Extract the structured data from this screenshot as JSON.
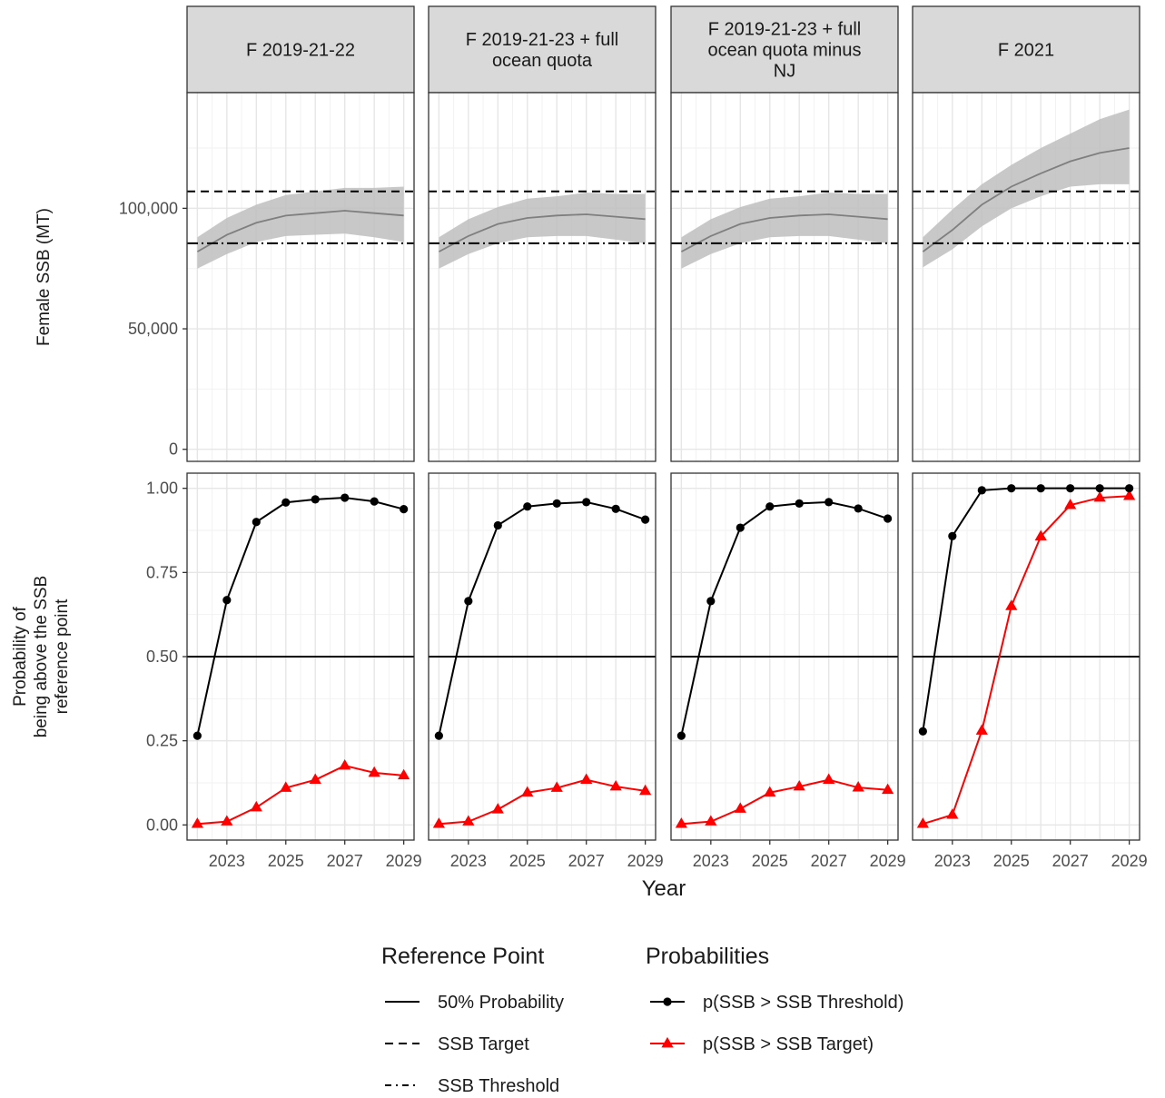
{
  "chart_data": {
    "type": "line",
    "facets": [
      {
        "label_lines": [
          "F 2019-21-22"
        ],
        "ssb": {
          "x": [
            2022,
            2023,
            2024,
            2025,
            2026,
            2027,
            2028,
            2029
          ],
          "median": [
            82000,
            89000,
            94000,
            97000,
            98000,
            99000,
            98000,
            97000
          ],
          "lower": [
            75000,
            81000,
            86000,
            88500,
            89000,
            89500,
            88000,
            86000
          ],
          "upper": [
            88000,
            96000,
            101500,
            105500,
            107000,
            108500,
            108500,
            109000
          ]
        },
        "p_threshold": [
          0.265,
          0.668,
          0.9,
          0.958,
          0.967,
          0.972,
          0.961,
          0.938
        ],
        "p_target": [
          0.003,
          0.01,
          0.052,
          0.11,
          0.134,
          0.176,
          0.155,
          0.147
        ]
      },
      {
        "label_lines": [
          "F 2019-21-23 + full",
          "ocean quota"
        ],
        "ssb": {
          "x": [
            2022,
            2023,
            2024,
            2025,
            2026,
            2027,
            2028,
            2029
          ],
          "median": [
            82000,
            88500,
            93500,
            96000,
            97000,
            97500,
            96500,
            95500
          ],
          "lower": [
            75000,
            81000,
            85500,
            88000,
            88500,
            88500,
            87000,
            85500
          ],
          "upper": [
            88000,
            95500,
            100500,
            104000,
            105000,
            106500,
            106000,
            106000
          ]
        },
        "p_threshold": [
          0.265,
          0.665,
          0.89,
          0.946,
          0.955,
          0.959,
          0.939,
          0.907
        ],
        "p_target": [
          0.003,
          0.01,
          0.046,
          0.096,
          0.11,
          0.134,
          0.114,
          0.101
        ]
      },
      {
        "label_lines": [
          "F 2019-21-23 + full",
          "ocean quota minus",
          "NJ"
        ],
        "ssb": {
          "x": [
            2022,
            2023,
            2024,
            2025,
            2026,
            2027,
            2028,
            2029
          ],
          "median": [
            82000,
            88500,
            93500,
            96000,
            97000,
            97500,
            96500,
            95500
          ],
          "lower": [
            75000,
            81000,
            85500,
            88000,
            88500,
            88500,
            87000,
            85500
          ],
          "upper": [
            88000,
            95500,
            100500,
            104000,
            105000,
            106500,
            106000,
            106000
          ]
        },
        "p_threshold": [
          0.265,
          0.665,
          0.883,
          0.946,
          0.955,
          0.959,
          0.94,
          0.91
        ],
        "p_target": [
          0.003,
          0.01,
          0.048,
          0.096,
          0.114,
          0.134,
          0.111,
          0.104
        ]
      },
      {
        "label_lines": [
          "F 2021"
        ],
        "ssb": {
          "x": [
            2022,
            2023,
            2024,
            2025,
            2026,
            2027,
            2028,
            2029
          ],
          "median": [
            82000,
            91000,
            101500,
            109000,
            114500,
            119500,
            123000,
            125000
          ],
          "lower": [
            75500,
            83000,
            92500,
            100000,
            105000,
            109000,
            110000,
            110000
          ],
          "upper": [
            88000,
            99500,
            110000,
            118000,
            125000,
            131000,
            137000,
            141000
          ]
        },
        "p_threshold": [
          0.278,
          0.858,
          0.994,
          1.0,
          1.0,
          1.0,
          1.0,
          1.0
        ],
        "p_target": [
          0.003,
          0.03,
          0.28,
          0.65,
          0.857,
          0.95,
          0.972,
          0.977
        ]
      }
    ],
    "reference_lines": {
      "ssb_target": 107000,
      "ssb_threshold": 85500,
      "probability_50": 0.5
    },
    "ssb_panel": {
      "ylabel": "Female SSB (MT)",
      "ylim": [
        -5000,
        148000
      ],
      "yticks": [
        0,
        50000,
        100000
      ],
      "ytick_labels": [
        "0",
        "50,000",
        "100,000"
      ]
    },
    "prob_panel": {
      "ylabel_lines": [
        "Probability of",
        "being above the SSB",
        "reference point"
      ],
      "ylim": [
        -0.045,
        1.045
      ],
      "yticks": [
        0,
        0.25,
        0.5,
        0.75,
        1.0
      ],
      "ytick_labels": [
        "0.00",
        "0.25",
        "0.50",
        "0.75",
        "1.00"
      ]
    },
    "x_axis": {
      "xlabel": "Year",
      "xlim": [
        2021.65,
        2029.35
      ],
      "xticks": [
        2023,
        2025,
        2027,
        2029
      ],
      "xtick_labels": [
        "2023",
        "2025",
        "2027",
        "2029"
      ]
    },
    "legend": {
      "placement": "bottom",
      "groups": [
        {
          "title": "Reference Point",
          "entries": [
            {
              "label": "50% Probability",
              "linetype": "solid"
            },
            {
              "label": "SSB Target",
              "linetype": "dashed"
            },
            {
              "label": "SSB Threshold",
              "linetype": "dotdash"
            }
          ]
        },
        {
          "title": "Probabilities",
          "entries": [
            {
              "label": "p(SSB > SSB Threshold)",
              "color": "#000000",
              "marker": "circle"
            },
            {
              "label": "p(SSB > SSB Target)",
              "color": "#ff0000",
              "marker": "triangle"
            }
          ]
        }
      ]
    },
    "colors": {
      "threshold_series": "#000000",
      "target_series": "#ff0000",
      "ribbon": "#bebebe",
      "ssb_line": "#7f7f7f",
      "strip_fill": "#d9d9d9"
    },
    "grid": true
  }
}
